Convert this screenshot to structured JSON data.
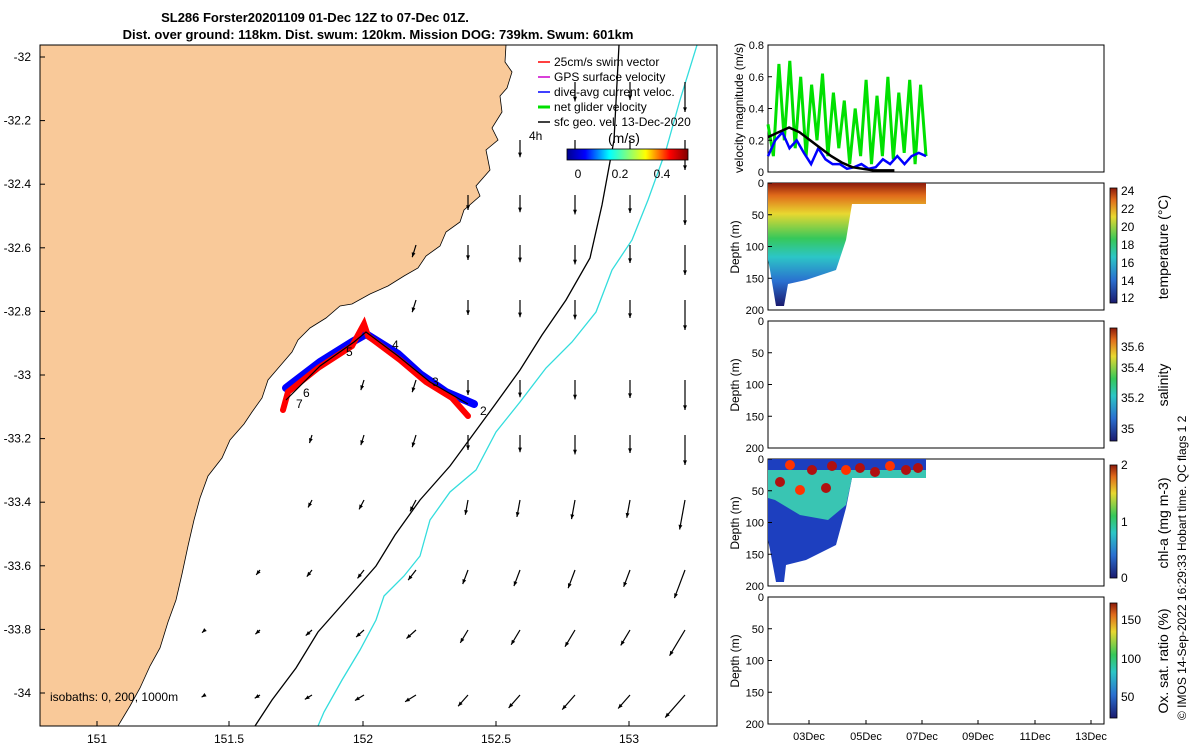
{
  "title": {
    "line1": "SL286 Forster20201109 01-Dec 12Z to 07-Dec 01Z.",
    "line2": "Dist. over ground: 118km. Dist. swum: 120km. Mission DOG: 739km. Swum: 601km"
  },
  "map": {
    "x_ticks": [
      "151",
      "151.5",
      "152",
      "152.5",
      "153"
    ],
    "y_ticks": [
      "-32",
      "-32.2",
      "-32.4",
      "-32.6",
      "-32.8",
      "-33",
      "-33.2",
      "-33.4",
      "-33.6",
      "-33.8",
      "-34"
    ],
    "legend": [
      {
        "label": "25cm/s swim vector",
        "color": "#ff0000"
      },
      {
        "label": "GPS surface velocity",
        "color": "#cc00cc"
      },
      {
        "label": "dive-avg current veloc.",
        "color": "#0000ff"
      },
      {
        "label": "net glider velocity",
        "color": "#00e000"
      },
      {
        "label": "sfc geo. vel. 13-Dec-2020",
        "color": "#000000"
      }
    ],
    "colorbar_unit": "(m/s)",
    "colorbar_ticks": [
      "0",
      "0.2",
      "0.4"
    ],
    "time_label": "4h",
    "isobath_note": "isobaths: 0, 200, 1000m",
    "waypoints": [
      "2",
      "3",
      "4",
      "5",
      "6",
      "7"
    ],
    "colors": {
      "land": "#f9c999",
      "iso200": "#000000",
      "iso1000": "#33dddd",
      "track": "#ff0000",
      "dive": "#0000ff"
    }
  },
  "chart_data": [
    {
      "type": "line",
      "ylabel": "velocity magnitude (m/s)",
      "ylim": [
        0,
        0.8
      ],
      "y_ticks": [
        "0",
        "0.2",
        "0.4",
        "0.6",
        "0.8"
      ],
      "series": [
        {
          "color": "#00e000",
          "values": [
            0.3,
            0.1,
            0.68,
            0.2,
            0.7,
            0.15,
            0.6,
            0.1,
            0.55,
            0.2,
            0.62,
            0.1,
            0.5,
            0.15,
            0.45,
            0.05,
            0.4,
            0.1,
            0.58,
            0.05,
            0.48,
            0.1,
            0.6,
            0.08,
            0.5,
            0.12,
            0.58,
            0.05,
            0.55,
            0.1
          ]
        },
        {
          "color": "#0000ff",
          "values": [
            0.1,
            0.2,
            0.25,
            0.15,
            0.2,
            0.12,
            0.05,
            0.15,
            0.08,
            0.05,
            0.05,
            0.02,
            0.03,
            0.05,
            0.02,
            0.03,
            0.08,
            0.05,
            0.1,
            0.05,
            0.1,
            0.12,
            0.1
          ]
        },
        {
          "color": "#000000",
          "values": [
            0.22,
            0.25,
            0.28,
            0.25,
            0.2,
            0.15,
            0.1,
            0.06,
            0.03,
            0.02,
            0.01,
            0.01,
            0.01
          ]
        }
      ]
    },
    {
      "type": "heatmap",
      "variable": "temperature",
      "cbar_label": "temperature (°C)",
      "cbar_ticks": [
        "12",
        "14",
        "16",
        "18",
        "20",
        "22",
        "24"
      ],
      "ylabel": "Depth (m)",
      "y_ticks": [
        "0",
        "50",
        "100",
        "150",
        "200"
      ]
    },
    {
      "type": "heatmap",
      "variable": "salinity",
      "cbar_label": "salinity",
      "cbar_ticks": [
        "35",
        "35.2",
        "35.4",
        "35.6"
      ],
      "ylabel": "Depth (m)",
      "y_ticks": [
        "0",
        "50",
        "100",
        "150",
        "200"
      ]
    },
    {
      "type": "heatmap",
      "variable": "chl-a",
      "cbar_label": "chl-a (mg m-3)",
      "cbar_ticks": [
        "0",
        "1",
        "2"
      ],
      "ylabel": "Depth (m)",
      "y_ticks": [
        "0",
        "50",
        "100",
        "150",
        "200"
      ]
    },
    {
      "type": "heatmap",
      "variable": "oxygen",
      "cbar_label": "Ox. sat. ratio (%)",
      "cbar_ticks": [
        "50",
        "100",
        "150"
      ],
      "ylabel": "Depth (m)",
      "y_ticks": [
        "0",
        "50",
        "100",
        "150",
        "200"
      ]
    }
  ],
  "time_axis": [
    "03Dec",
    "05Dec",
    "07Dec",
    "09Dec",
    "11Dec",
    "13Dec"
  ],
  "side_note": "© IMOS 14-Sep-2022 16:29:33 Hobart time. QC flags 1  2"
}
